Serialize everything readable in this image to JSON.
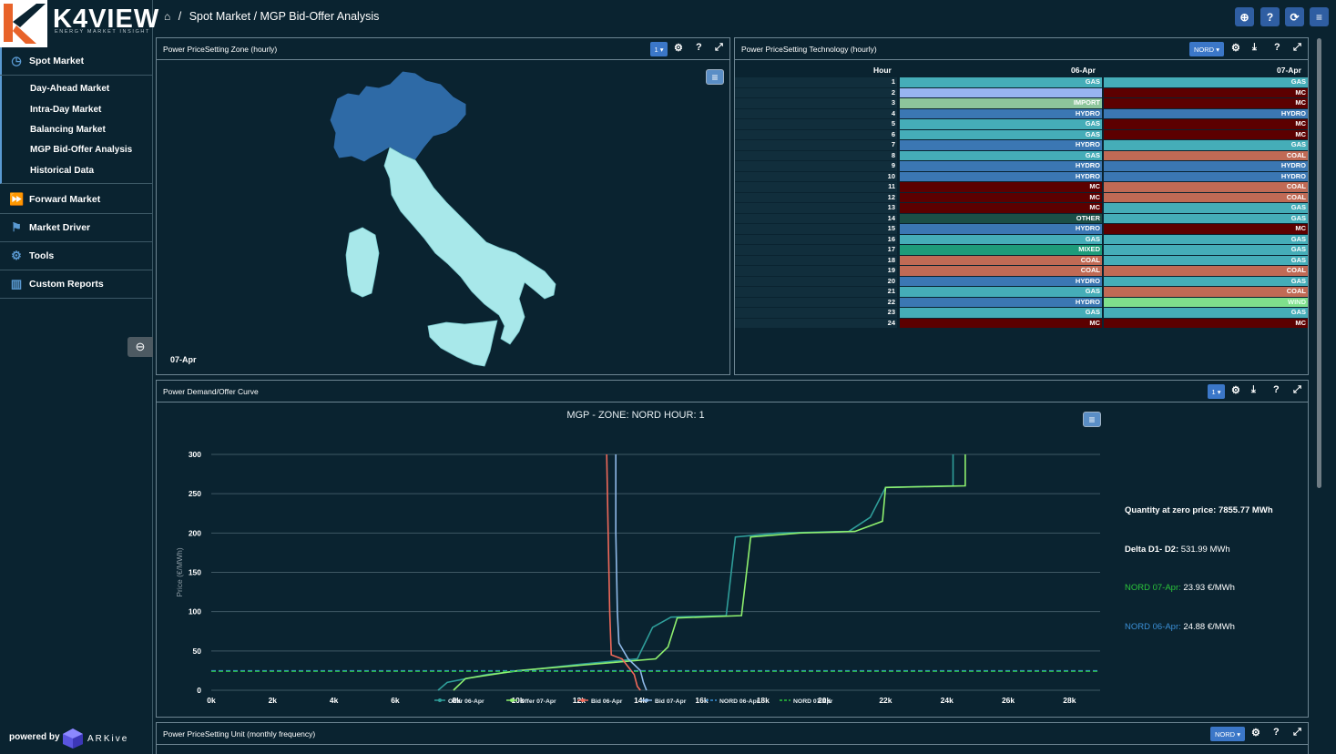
{
  "app": {
    "logo": "K4VIEW",
    "logo_sub": "ENERGY MARKET INSIGHT",
    "breadcrumb": "Spot Market / MGP Bid-Offer Analysis",
    "powered_by": "powered by",
    "powered_brand": "ARKive"
  },
  "sidebar": {
    "spot": "Spot Market",
    "spot_items": [
      "Day-Ahead Market",
      "Intra-Day Market",
      "Balancing Market",
      "MGP Bid-Offer Analysis",
      "Historical Data"
    ],
    "forward": "Forward Market",
    "driver": "Market Driver",
    "tools": "Tools",
    "reports": "Custom Reports"
  },
  "zone_panel": {
    "title": "Power PriceSetting Zone (hourly)",
    "selector": "1",
    "date_label": "07-Apr"
  },
  "tech_panel": {
    "title": "Power PriceSetting Technology (hourly)",
    "selector": "NORD",
    "col_hour": "Hour",
    "col_d1": "06-Apr",
    "col_d2": "07-Apr",
    "rows": [
      {
        "h": "1",
        "a": "GAS",
        "b": "GAS"
      },
      {
        "h": "2",
        "a": "",
        "b": "MC"
      },
      {
        "h": "3",
        "a": "IMPORT",
        "b": "MC"
      },
      {
        "h": "4",
        "a": "HYDRO",
        "b": "HYDRO"
      },
      {
        "h": "5",
        "a": "GAS",
        "b": "MC"
      },
      {
        "h": "6",
        "a": "GAS",
        "b": "MC"
      },
      {
        "h": "7",
        "a": "HYDRO",
        "b": "GAS"
      },
      {
        "h": "8",
        "a": "GAS",
        "b": "COAL"
      },
      {
        "h": "9",
        "a": "HYDRO",
        "b": "HYDRO"
      },
      {
        "h": "10",
        "a": "HYDRO",
        "b": "HYDRO"
      },
      {
        "h": "11",
        "a": "MC",
        "b": "COAL"
      },
      {
        "h": "12",
        "a": "MC",
        "b": "COAL"
      },
      {
        "h": "13",
        "a": "MC",
        "b": "GAS"
      },
      {
        "h": "14",
        "a": "OTHER",
        "b": "GAS"
      },
      {
        "h": "15",
        "a": "HYDRO",
        "b": "MC"
      },
      {
        "h": "16",
        "a": "GAS",
        "b": "GAS"
      },
      {
        "h": "17",
        "a": "MIXED",
        "b": "GAS"
      },
      {
        "h": "18",
        "a": "COAL",
        "b": "GAS"
      },
      {
        "h": "19",
        "a": "COAL",
        "b": "COAL"
      },
      {
        "h": "20",
        "a": "HYDRO",
        "b": "GAS"
      },
      {
        "h": "21",
        "a": "GAS",
        "b": "COAL"
      },
      {
        "h": "22",
        "a": "HYDRO",
        "b": "WIND"
      },
      {
        "h": "23",
        "a": "GAS",
        "b": "GAS"
      },
      {
        "h": "24",
        "a": "MC",
        "b": "MC"
      }
    ],
    "colors": {
      "GAS": "#45adb8",
      "MC": "#5c0000",
      "IMPORT": "#8dc59b",
      "HYDRO": "#3b77b3",
      "COAL": "#c06a55",
      "OTHER": "#1b4f47",
      "MIXED": "#1e9b7a",
      "WIND": "#7fe08c",
      "EMPTY": "#98b4f0"
    }
  },
  "curve_panel": {
    "title": "Power Demand/Offer Curve",
    "selector": "1",
    "stats": {
      "q0_label": "Quantity at zero price:",
      "q0_value": "7855.77 MWh",
      "delta_label": "Delta D1- D2:",
      "delta_value": "531.99 MWh",
      "n07_label": "NORD 07-Apr:",
      "n07_value": "23.93 €/MWh",
      "n06_label": "NORD 06-Apr:",
      "n06_value": "24.88 €/MWh"
    }
  },
  "chart_data": {
    "type": "line",
    "title": "MGP - ZONE: NORD HOUR: 1",
    "xlabel": "",
    "ylabel": "Price (€/MWh)",
    "xlim": [
      0,
      29000
    ],
    "ylim": [
      0,
      300
    ],
    "xticks": [
      "0k",
      "2k",
      "4k",
      "6k",
      "8k",
      "10k",
      "12k",
      "14k",
      "16k",
      "18k",
      "20k",
      "22k",
      "24k",
      "26k",
      "28k"
    ],
    "yticks": [
      "0",
      "50",
      "100",
      "150",
      "200",
      "250",
      "300"
    ],
    "series": [
      {
        "name": "Offer 06-Apr",
        "color": "#2f9e9a",
        "points": [
          [
            7400,
            0
          ],
          [
            7700,
            10
          ],
          [
            9000,
            20
          ],
          [
            12000,
            33
          ],
          [
            13900,
            40
          ],
          [
            14400,
            80
          ],
          [
            15000,
            93
          ],
          [
            16800,
            95
          ],
          [
            17100,
            195
          ],
          [
            18500,
            200
          ],
          [
            20800,
            202
          ],
          [
            21500,
            220
          ],
          [
            22000,
            258
          ],
          [
            24200,
            260
          ],
          [
            24200,
            300
          ]
        ]
      },
      {
        "name": "Offer 07-Apr",
        "color": "#8ef06e",
        "points": [
          [
            7900,
            0
          ],
          [
            8300,
            15
          ],
          [
            10000,
            25
          ],
          [
            13000,
            35
          ],
          [
            14500,
            40
          ],
          [
            14900,
            55
          ],
          [
            15200,
            92
          ],
          [
            17300,
            95
          ],
          [
            17600,
            195
          ],
          [
            19200,
            200
          ],
          [
            21000,
            202
          ],
          [
            21900,
            215
          ],
          [
            22000,
            258
          ],
          [
            24600,
            260
          ],
          [
            24600,
            300
          ]
        ]
      },
      {
        "name": "Bid 06-Apr",
        "color": "#f0695a",
        "points": [
          [
            12900,
            300
          ],
          [
            12950,
            200
          ],
          [
            13000,
            100
          ],
          [
            13050,
            45
          ],
          [
            13400,
            40
          ],
          [
            13800,
            20
          ],
          [
            13900,
            5
          ],
          [
            14000,
            0
          ]
        ]
      },
      {
        "name": "Bid 07-Apr",
        "color": "#8fb9e8",
        "points": [
          [
            13200,
            300
          ],
          [
            13200,
            200
          ],
          [
            13250,
            100
          ],
          [
            13300,
            60
          ],
          [
            13600,
            40
          ],
          [
            14000,
            25
          ],
          [
            14100,
            10
          ],
          [
            14200,
            0
          ]
        ]
      },
      {
        "name": "NORD 06-Apr",
        "color": "#3b8fd6",
        "points": [
          [
            0,
            24.88
          ],
          [
            29000,
            24.88
          ]
        ]
      },
      {
        "name": "NORD 07-Apr",
        "color": "#2bc43b",
        "points": [
          [
            0,
            23.93
          ],
          [
            29000,
            23.93
          ]
        ]
      }
    ]
  },
  "unit_panel": {
    "title": "Power PriceSetting Unit (monthly frequency)",
    "selector": "NORD"
  }
}
